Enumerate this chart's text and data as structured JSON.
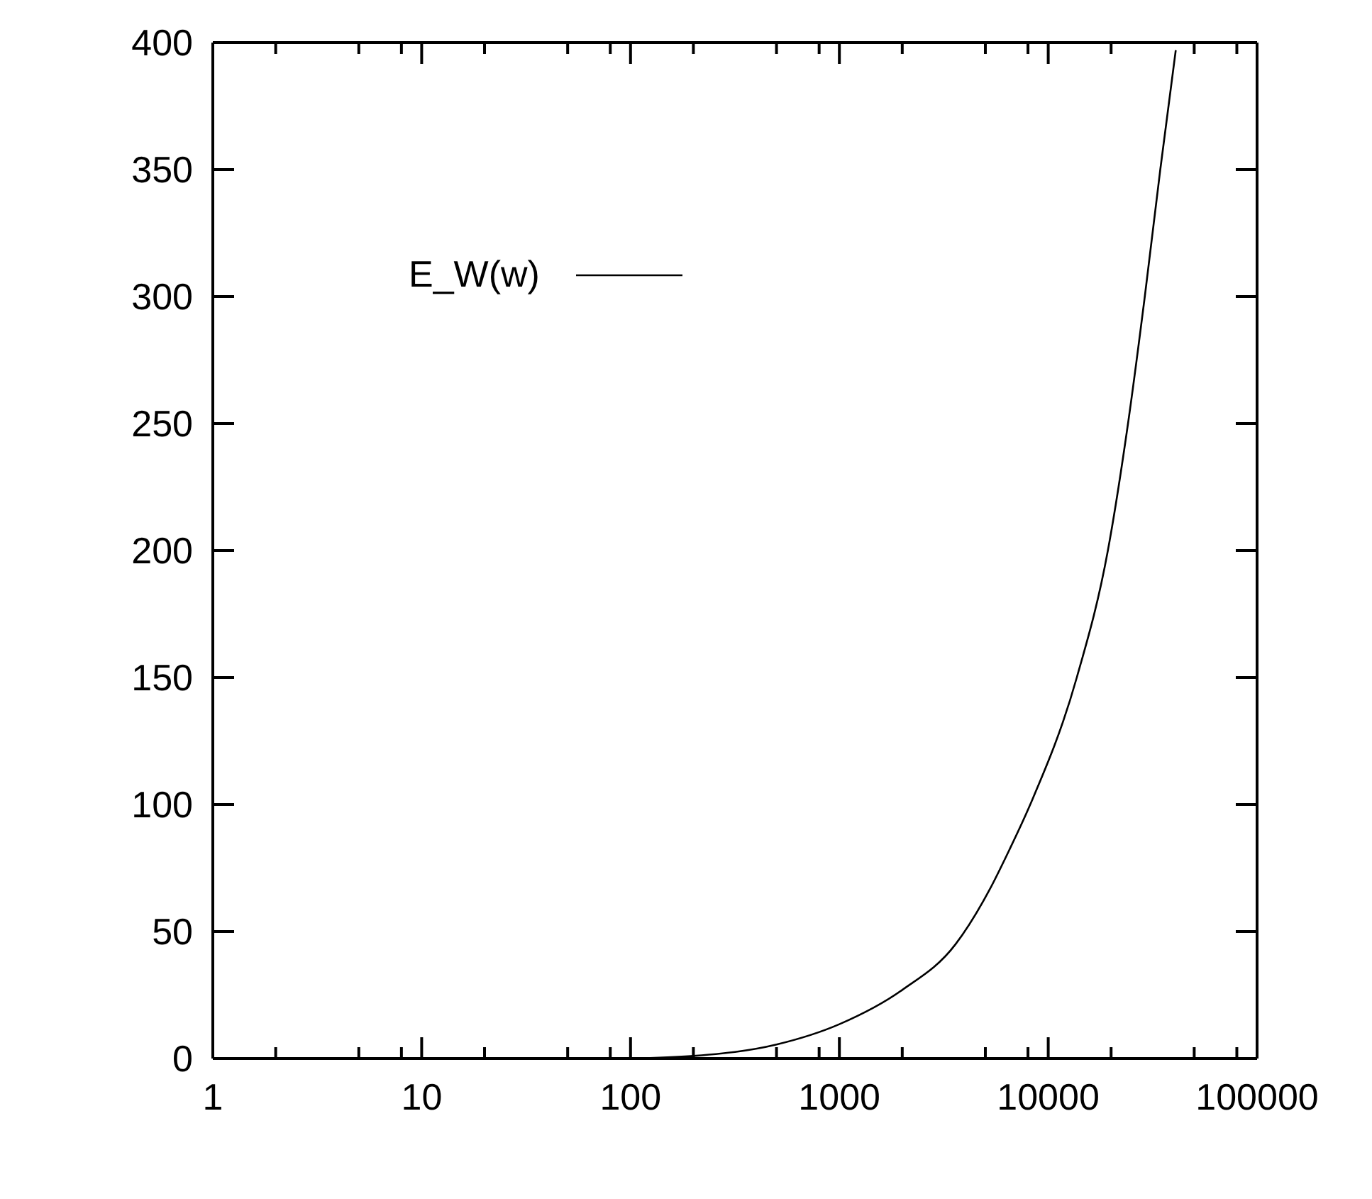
{
  "chart_data": {
    "type": "line",
    "log": "x",
    "legend": "top left",
    "marker": "none",
    "line_style": "solid",
    "x": [
      100,
      200,
      500,
      1000,
      2000,
      3600,
      5200,
      6500,
      8200,
      13700,
      19300,
      24100,
      29000,
      34400,
      40800
    ],
    "series": [
      {
        "name": "E_W(w)",
        "color": "#000000",
        "values": [
          0,
          1,
          5.5,
          13.5,
          27,
          45,
          66,
          82,
          100,
          150,
          200,
          250,
          300,
          350,
          397
        ]
      }
    ],
    "xlim": [
      1,
      100000
    ],
    "xticks": [
      1,
      {
        "value": 2,
        "label": null
      },
      {
        "value": 5,
        "label": null
      },
      {
        "value": 8,
        "label": null
      },
      10,
      {
        "value": 20,
        "label": null
      },
      {
        "value": 50,
        "label": null
      },
      {
        "value": 80,
        "label": null
      },
      100,
      {
        "value": 200,
        "label": null
      },
      {
        "value": 500,
        "label": null
      },
      {
        "value": 800,
        "label": null
      },
      1000,
      {
        "value": 2000,
        "label": null
      },
      {
        "value": 5000,
        "label": null
      },
      {
        "value": 8000,
        "label": null
      },
      10000,
      {
        "value": 20000,
        "label": null
      },
      {
        "value": 50000,
        "label": null
      },
      {
        "value": 80000,
        "label": null
      },
      100000
    ],
    "ylim": [
      0,
      400
    ],
    "yticks": [
      0,
      50,
      100,
      150,
      200,
      250,
      300,
      350,
      400
    ]
  }
}
